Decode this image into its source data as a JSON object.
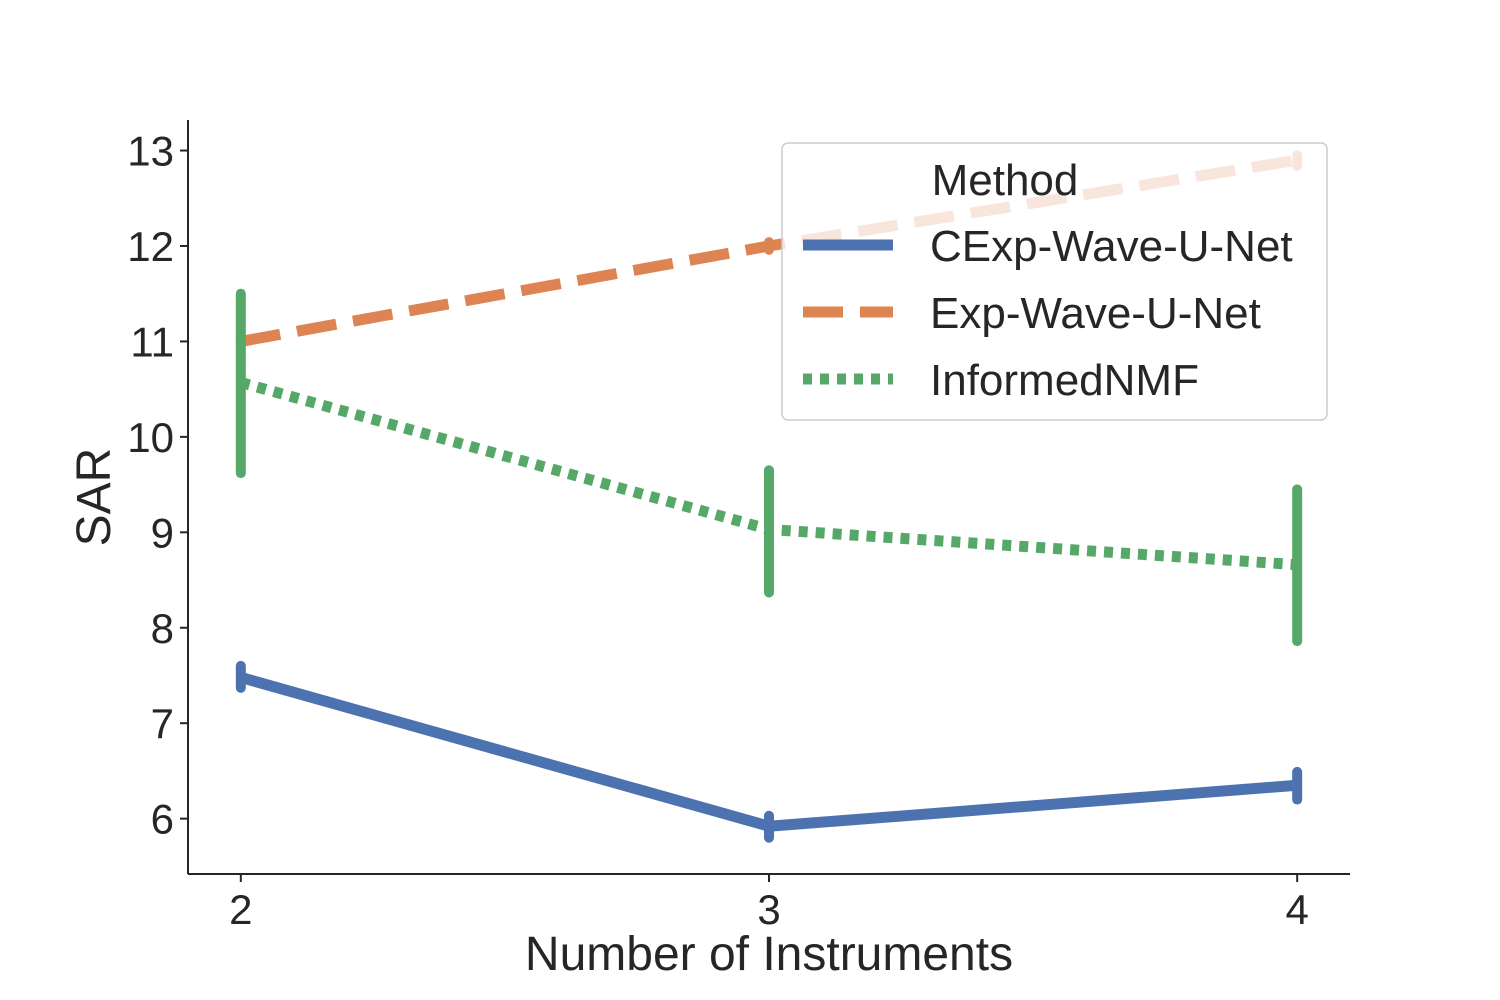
{
  "chart_data": {
    "type": "line",
    "xlabel": "Number of Instruments",
    "ylabel": "SAR",
    "categories": [
      "2",
      "3",
      "4"
    ],
    "x": [
      2,
      3,
      4
    ],
    "xlim": [
      1.9,
      4.1
    ],
    "ylim": [
      5.42,
      13.32
    ],
    "yticks": [
      6,
      7,
      8,
      9,
      10,
      11,
      12,
      13
    ],
    "grid": false,
    "legend": {
      "title": "Method",
      "placement": "top-right"
    },
    "series": [
      {
        "name": "CExp-Wave-U-Net",
        "style": "solid",
        "color": "#4c72b0",
        "values": [
          7.48,
          5.92,
          6.35
        ],
        "error_low": [
          7.37,
          5.8,
          6.2
        ],
        "error_high": [
          7.6,
          6.03,
          6.49
        ]
      },
      {
        "name": "Exp-Wave-U-Net",
        "style": "dashed",
        "color": "#dd8452",
        "values": [
          11.0,
          12.0,
          12.9
        ],
        "error_low": [
          10.98,
          11.96,
          12.84
        ],
        "error_high": [
          11.02,
          12.04,
          12.95
        ]
      },
      {
        "name": "InformedNMF",
        "style": "dotted",
        "color": "#55a868",
        "values": [
          10.57,
          9.03,
          8.66
        ],
        "error_low": [
          9.62,
          8.37,
          7.86
        ],
        "error_high": [
          11.5,
          9.65,
          9.45
        ]
      }
    ]
  }
}
